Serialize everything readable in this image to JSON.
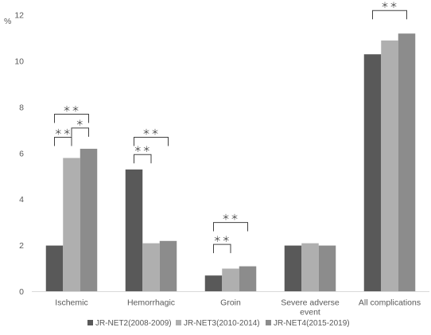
{
  "chart_data": {
    "type": "bar",
    "ylabel": "%",
    "ylim": [
      0,
      12
    ],
    "yticks": [
      0,
      2,
      4,
      6,
      8,
      10,
      12
    ],
    "grid": false,
    "legend_position": "bottom",
    "categories": [
      [
        "Ischemic"
      ],
      [
        "Hemorrhagic"
      ],
      [
        "Groin"
      ],
      [
        "Severe adverse",
        "event"
      ],
      [
        "All complications"
      ]
    ],
    "series": [
      {
        "name": "JR-NET2(2008-2009)",
        "color": "#595959",
        "values": [
          2.0,
          5.3,
          0.7,
          2.0,
          10.3
        ]
      },
      {
        "name": "JR-NET3(2010-2014)",
        "color": "#afafaf",
        "values": [
          5.8,
          2.1,
          1.0,
          2.1,
          10.9
        ]
      },
      {
        "name": "JR-NET4(2015-2019)",
        "color": "#8c8c8c",
        "values": [
          6.2,
          2.2,
          1.1,
          2.0,
          11.2
        ]
      }
    ],
    "significance": [
      {
        "category": 0,
        "from": 0,
        "to": 2,
        "label": "＊＊",
        "level": 7.7
      },
      {
        "category": 0,
        "from": 1,
        "to": 2,
        "label": "＊",
        "level": 7.1
      },
      {
        "category": 0,
        "from": 0,
        "to": 1,
        "label": "＊＊",
        "level": 6.7
      },
      {
        "category": 1,
        "from": 0,
        "to": 2,
        "label": "＊＊",
        "level": 6.7
      },
      {
        "category": 1,
        "from": 0,
        "to": 1,
        "label": "＊＊",
        "level": 5.95
      },
      {
        "category": 2,
        "from": 0,
        "to": 2,
        "label": "＊＊",
        "level": 3.0
      },
      {
        "category": 2,
        "from": 0,
        "to": 1,
        "label": "＊＊",
        "level": 2.05
      },
      {
        "category": 4,
        "from": 0,
        "to": 2,
        "label": "＊＊",
        "level": 12.2
      }
    ]
  }
}
